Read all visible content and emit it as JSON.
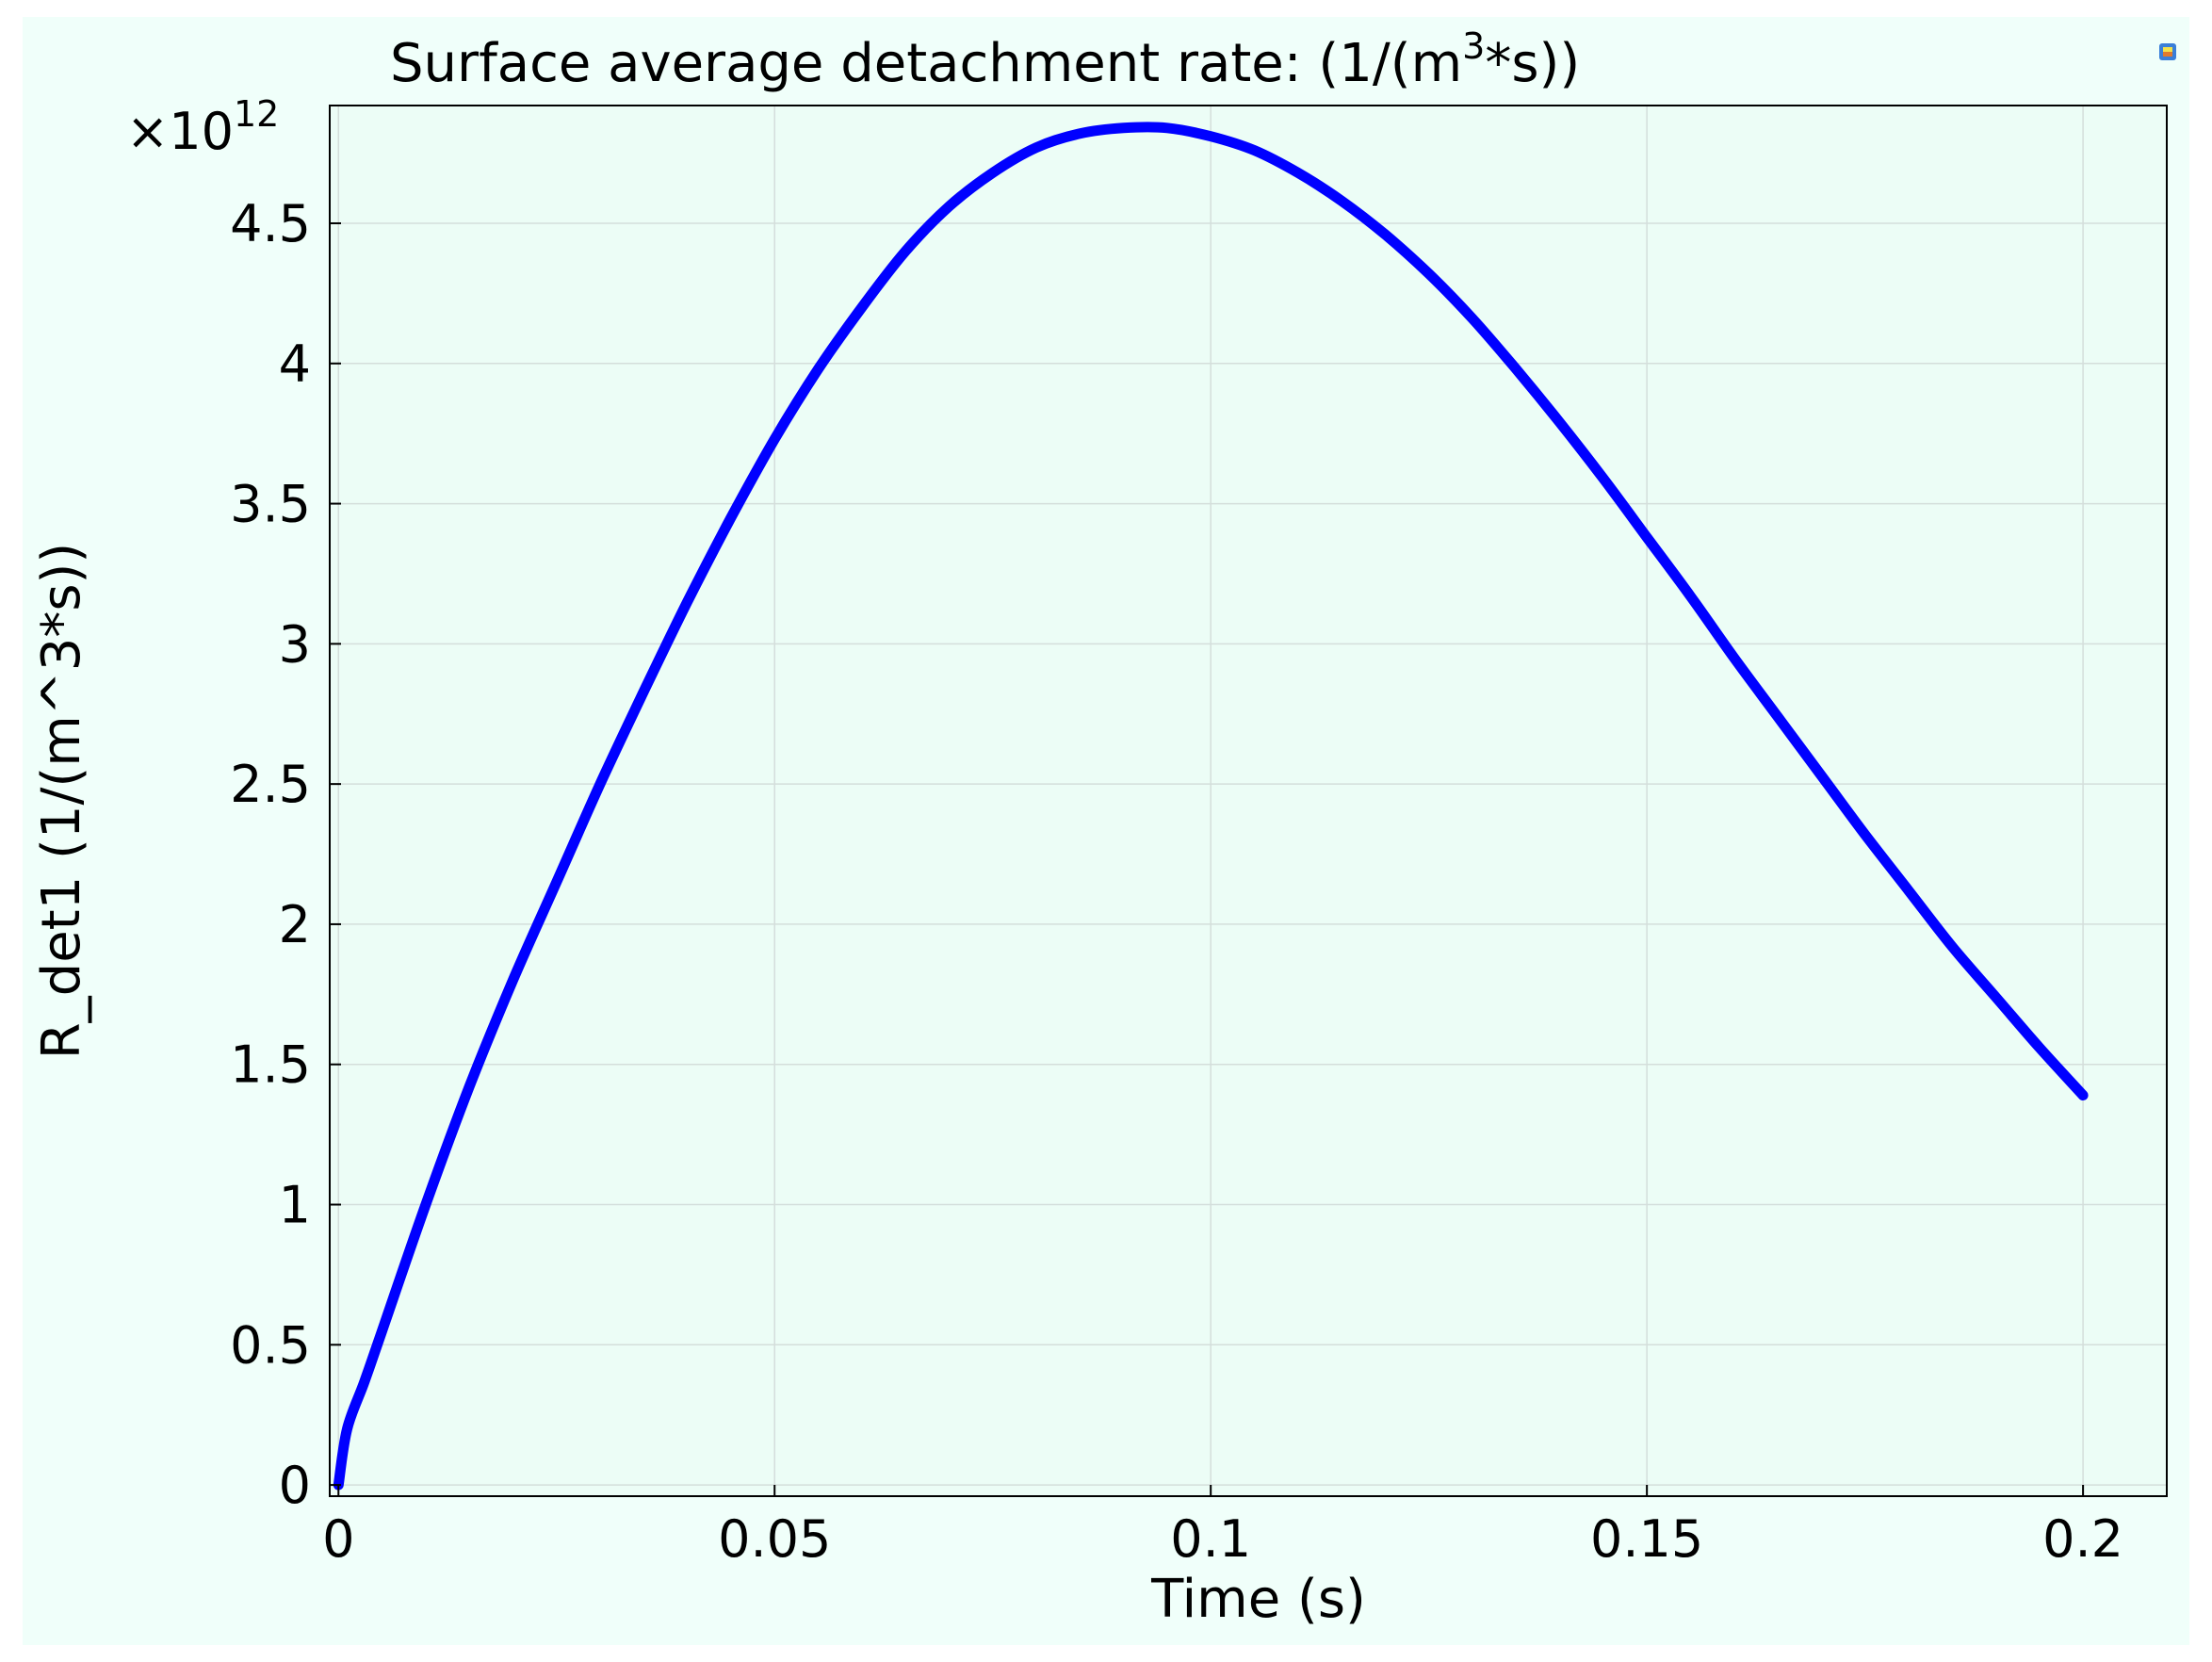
{
  "chart_data": {
    "type": "line",
    "title": "Surface average detachment rate:  (1/(m",
    "title_sup": "3",
    "title_tail": "*s))",
    "xlabel": "Time (s)",
    "ylabel": "R_det1 (1/(m^3*s))",
    "y_multiplier_base": "×10",
    "y_multiplier_exp": "12",
    "xlim": [
      -0.001,
      0.2096
    ],
    "ylim": [
      -0.04,
      4.92
    ],
    "x_ticks": [
      0,
      0.05,
      0.1,
      0.15,
      0.2
    ],
    "x_tick_labels": [
      "0",
      "0.05",
      "0.1",
      "0.15",
      "0.2"
    ],
    "y_ticks": [
      0,
      0.5,
      1,
      1.5,
      2,
      2.5,
      3,
      3.5,
      4,
      4.5
    ],
    "y_tick_labels": [
      "0",
      "0.5",
      "1",
      "1.5",
      "2",
      "2.5",
      "3",
      "3.5",
      "4",
      "4.5"
    ],
    "grid": true,
    "series": [
      {
        "color": "#0000ff",
        "x": [
          0,
          0.001,
          0.003,
          0.005,
          0.01,
          0.015,
          0.02,
          0.025,
          0.03,
          0.035,
          0.04,
          0.045,
          0.05,
          0.055,
          0.06,
          0.065,
          0.07,
          0.075,
          0.08,
          0.085,
          0.09,
          0.095,
          0.1,
          0.105,
          0.11,
          0.115,
          0.12,
          0.125,
          0.13,
          0.135,
          0.14,
          0.145,
          0.15,
          0.155,
          0.16,
          0.165,
          0.17,
          0.175,
          0.18,
          0.185,
          0.19,
          0.195,
          0.2
        ],
        "y": [
          0,
          0.2,
          0.37,
          0.55,
          1.0,
          1.42,
          1.8,
          2.15,
          2.5,
          2.83,
          3.15,
          3.45,
          3.73,
          3.98,
          4.2,
          4.4,
          4.56,
          4.68,
          4.77,
          4.82,
          4.84,
          4.84,
          4.81,
          4.76,
          4.68,
          4.58,
          4.46,
          4.32,
          4.16,
          3.98,
          3.79,
          3.59,
          3.38,
          3.17,
          2.95,
          2.74,
          2.53,
          2.32,
          2.12,
          1.92,
          1.74,
          1.56,
          1.39
        ]
      }
    ]
  },
  "colors": {
    "plot_window_bg": "#f0fffa",
    "axes_bg": "#ecfdf6",
    "grid": "#d4dedb",
    "line": "#0000ff"
  },
  "icons": {
    "corner_icon": "colormap-icon"
  }
}
